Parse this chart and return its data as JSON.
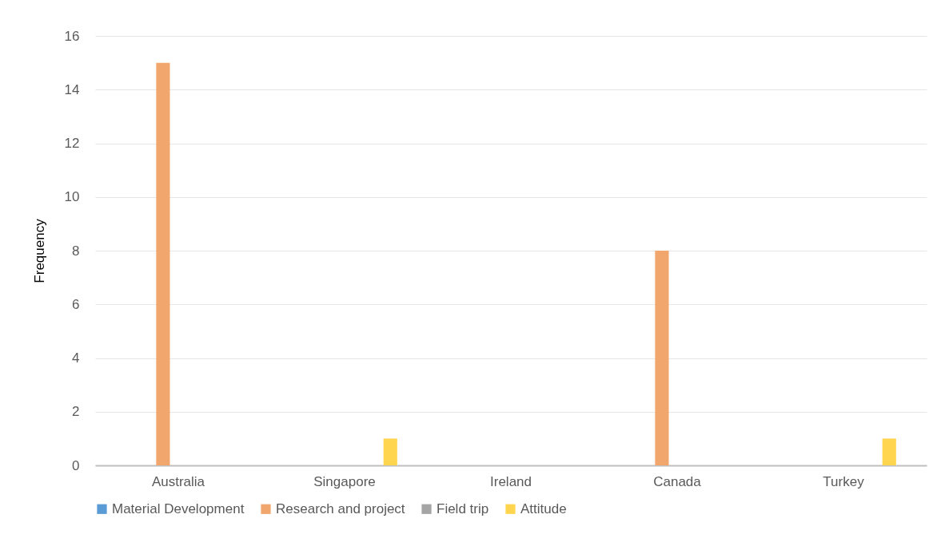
{
  "chart_data": {
    "type": "bar",
    "ylabel": "Frequency",
    "categories": [
      "Australia",
      "Singapore",
      "Ireland",
      "Canada",
      "Turkey"
    ],
    "series": [
      {
        "name": "Material Development",
        "color": "#5b9bd5",
        "values": [
          0,
          0,
          0,
          0,
          0
        ]
      },
      {
        "name": "Research and project",
        "color": "#f1a66e",
        "values": [
          15,
          0,
          0,
          8,
          0
        ]
      },
      {
        "name": "Field trip",
        "color": "#a5a5a5",
        "values": [
          0,
          0,
          0,
          0,
          0
        ]
      },
      {
        "name": "Attitude",
        "color": "#ffd54f",
        "values": [
          0,
          1,
          0,
          0,
          1
        ]
      }
    ],
    "ylim": [
      0,
      16
    ],
    "yticks": [
      0,
      2,
      4,
      6,
      8,
      10,
      12,
      14,
      16
    ],
    "grid": "y",
    "legend": "bottom"
  }
}
